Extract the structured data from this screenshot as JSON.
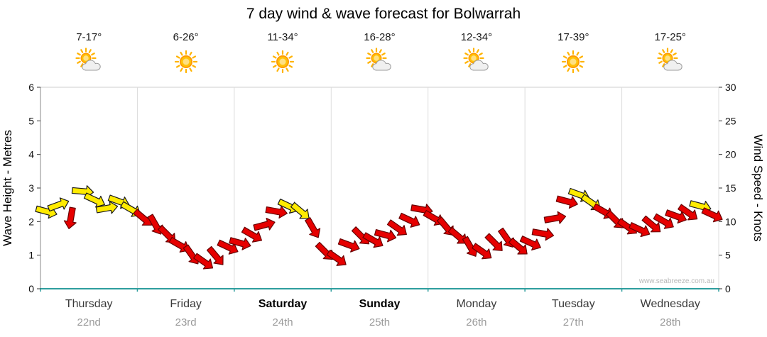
{
  "title": "7 day wind & wave forecast for Bolwarrah",
  "watermark": "www.seabreeze.com.au",
  "days": [
    {
      "temp": "7-17°",
      "icon": "partly-cloudy",
      "name": "Thursday",
      "date": "22nd",
      "weekend": false
    },
    {
      "temp": "6-26°",
      "icon": "sunny",
      "name": "Friday",
      "date": "23rd",
      "weekend": false
    },
    {
      "temp": "11-34°",
      "icon": "sunny",
      "name": "Saturday",
      "date": "24th",
      "weekend": true
    },
    {
      "temp": "16-28°",
      "icon": "partly-cloudy",
      "name": "Sunday",
      "date": "25th",
      "weekend": true
    },
    {
      "temp": "12-34°",
      "icon": "partly-cloudy",
      "name": "Monday",
      "date": "26th",
      "weekend": false
    },
    {
      "temp": "17-39°",
      "icon": "sunny",
      "name": "Tuesday",
      "date": "27th",
      "weekend": false
    },
    {
      "temp": "17-25°",
      "icon": "partly-cloudy",
      "name": "Wednesday",
      "date": "28th",
      "weekend": false
    }
  ],
  "axes": {
    "left_label": "Wave Height - Metres",
    "right_label": "Wind Speed - Knots",
    "left_ticks": [
      0,
      1,
      2,
      3,
      4,
      5,
      6
    ],
    "right_ticks": [
      0,
      5,
      10,
      15,
      20,
      25,
      30
    ]
  },
  "colors": {
    "yellow": "#FFEB00",
    "yellow_stroke": "#1a1a1a",
    "red": "#E60000",
    "red_stroke": "#660000",
    "axis_teal": "#2E9E9E",
    "gridline": "#DCDCDC",
    "frame": "#CFCFCF"
  },
  "chart_data": {
    "type": "scatter",
    "subtype": "wind-direction-arrows",
    "title": "7 day wind & wave forecast for Bolwarrah",
    "x_axis": "time, 7 days (Thursday 22nd - Wednesday 28th), 8 samples per day",
    "points_per_day": 8,
    "y_left_axis": {
      "label": "Wave Height - Metres",
      "range": [
        0,
        6
      ]
    },
    "y_right_axis": {
      "label": "Wind Speed - Knots",
      "range": [
        0,
        30
      ]
    },
    "grid": "vertical day separators only",
    "legend": "none (arrow colour: yellow = onshore/sea-breeze, red = offshore)",
    "point_format": [
      "wind_speed_knots",
      "color",
      "direction_deg_clockwise_from_east"
    ],
    "points": [
      [
        11.5,
        "yellow",
        15
      ],
      [
        12.5,
        "yellow",
        -20
      ],
      [
        10.5,
        "red",
        100
      ],
      [
        14.5,
        "yellow",
        5
      ],
      [
        13.2,
        "yellow",
        25
      ],
      [
        12.0,
        "yellow",
        -10
      ],
      [
        13.0,
        "yellow",
        20
      ],
      [
        11.8,
        "yellow",
        30
      ],
      [
        10.5,
        "red",
        40
      ],
      [
        9.5,
        "red",
        60
      ],
      [
        8.0,
        "red",
        45
      ],
      [
        6.5,
        "red",
        30
      ],
      [
        5.0,
        "red",
        55
      ],
      [
        4.0,
        "red",
        35
      ],
      [
        4.8,
        "red",
        50
      ],
      [
        6.2,
        "red",
        25
      ],
      [
        6.8,
        "red",
        15
      ],
      [
        8.0,
        "red",
        30
      ],
      [
        9.5,
        "red",
        -15
      ],
      [
        11.5,
        "red",
        10
      ],
      [
        12.3,
        "yellow",
        25
      ],
      [
        11.5,
        "yellow",
        40
      ],
      [
        9.0,
        "red",
        60
      ],
      [
        5.5,
        "red",
        45
      ],
      [
        4.5,
        "red",
        35
      ],
      [
        6.5,
        "red",
        20
      ],
      [
        7.8,
        "red",
        45
      ],
      [
        7.2,
        "red",
        30
      ],
      [
        8.0,
        "red",
        15
      ],
      [
        9.0,
        "red",
        35
      ],
      [
        10.2,
        "red",
        25
      ],
      [
        11.8,
        "red",
        10
      ],
      [
        10.5,
        "red",
        30
      ],
      [
        9.2,
        "red",
        50
      ],
      [
        7.8,
        "red",
        40
      ],
      [
        6.2,
        "red",
        60
      ],
      [
        5.5,
        "red",
        35
      ],
      [
        6.8,
        "red",
        45
      ],
      [
        7.5,
        "red",
        55
      ],
      [
        6.2,
        "red",
        40
      ],
      [
        6.8,
        "red",
        25
      ],
      [
        8.2,
        "red",
        10
      ],
      [
        10.5,
        "red",
        -10
      ],
      [
        13.0,
        "red",
        15
      ],
      [
        14.0,
        "yellow",
        20
      ],
      [
        12.8,
        "yellow",
        35
      ],
      [
        11.5,
        "red",
        30
      ],
      [
        10.2,
        "red",
        45
      ],
      [
        9.2,
        "red",
        35
      ],
      [
        8.8,
        "red",
        25
      ],
      [
        9.5,
        "red",
        40
      ],
      [
        10.0,
        "red",
        30
      ],
      [
        10.8,
        "red",
        20
      ],
      [
        11.3,
        "red",
        35
      ],
      [
        12.3,
        "yellow",
        15
      ],
      [
        11.0,
        "red",
        25
      ]
    ]
  }
}
